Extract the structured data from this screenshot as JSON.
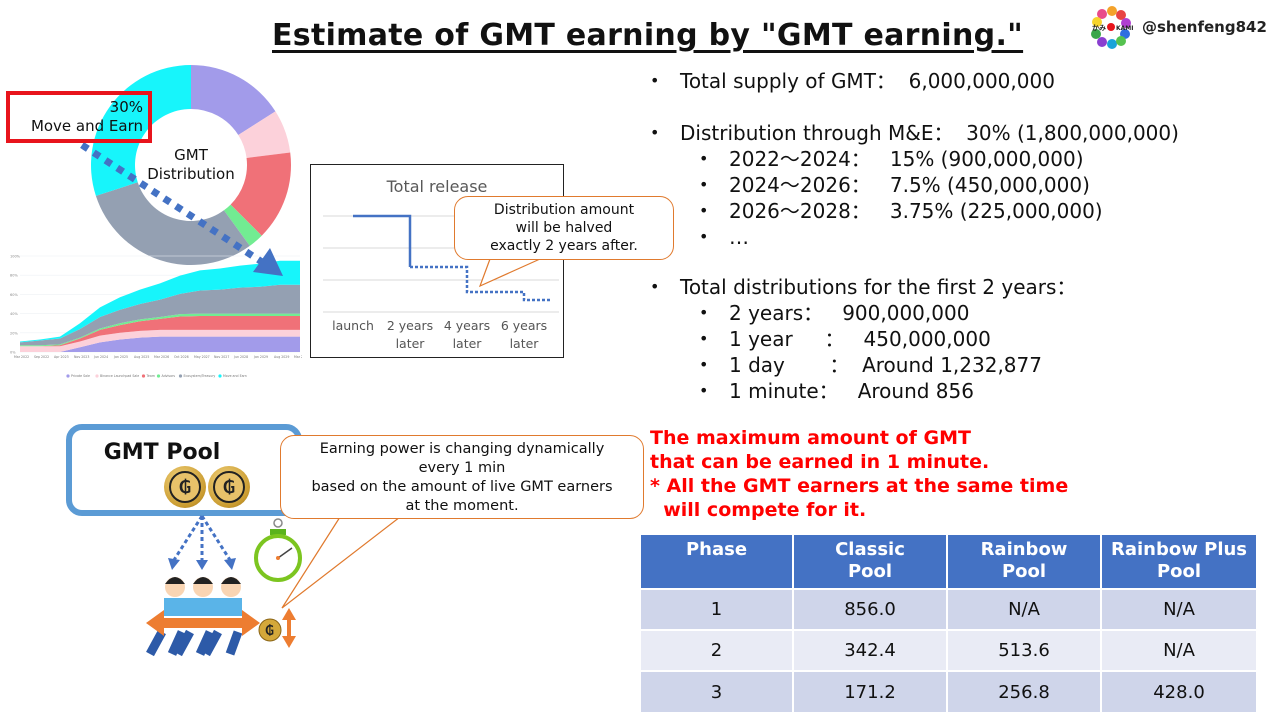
{
  "title": "Estimate of GMT earning by \"GMT earning.\"",
  "author": {
    "handle": "@shenfeng842",
    "logo": "kami-flower-logo"
  },
  "donut": {
    "center_label_line1": "GMT",
    "center_label_line2": "Distribution",
    "highlight_pct": "30%",
    "highlight_label": "Move and Earn",
    "segments": [
      {
        "name": "Private Sale",
        "pct": 16,
        "color": "#a29bea"
      },
      {
        "name": "Binance Launchpad Sale",
        "pct": 7,
        "color": "#fcd1da"
      },
      {
        "name": "Team",
        "pct": 14.5,
        "color": "#f07178"
      },
      {
        "name": "Advisors",
        "pct": 2.5,
        "color": "#72ec92"
      },
      {
        "name": "Ecosystem/Treasury",
        "pct": 30,
        "color": "#94a0b2"
      },
      {
        "name": "Move and Earn",
        "pct": 30,
        "color": "#17f5fb"
      }
    ]
  },
  "chart_data": [
    {
      "type": "pie",
      "title": "GMT Distribution",
      "categories": [
        "Private Sale",
        "Binance Launchpad Sale",
        "Team",
        "Advisors",
        "Ecosystem/Treasury",
        "Move and Earn"
      ],
      "values": [
        16,
        7,
        14.5,
        2.5,
        30,
        30
      ],
      "annotation": "30% Move and Earn"
    },
    {
      "type": "area",
      "title": "",
      "x": [
        "Mar 2022",
        "Sep 2022",
        "Apr 2023",
        "Nov 2023",
        "Jun 2024",
        "Jan 2025",
        "Aug 2025",
        "Mar 2026",
        "Oct 2026",
        "May 2027",
        "Nov 2027",
        "Jun 2028",
        "Jan 2029",
        "Aug 2029",
        "Mar 2030"
      ],
      "yticks": [
        "0%",
        "20%",
        "40%",
        "60%",
        "80%",
        "100%"
      ],
      "ylim": [
        0,
        100
      ],
      "stacked": true,
      "series": [
        {
          "name": "Private Sale",
          "values": [
            0,
            0,
            0,
            5,
            10,
            13,
            15,
            16,
            16,
            16,
            16,
            16,
            16,
            16,
            16
          ]
        },
        {
          "name": "Binance Launchpad Sale",
          "values": [
            6,
            6,
            6,
            6,
            7,
            7,
            7,
            7,
            7,
            7,
            7,
            7,
            7,
            7,
            7
          ]
        },
        {
          "name": "Team",
          "values": [
            0,
            0,
            1,
            3,
            6,
            8,
            10,
            11.5,
            14,
            14.5,
            14.5,
            14.5,
            14.5,
            14.5,
            14.5
          ]
        },
        {
          "name": "Advisors",
          "values": [
            1,
            1,
            1,
            1,
            1.5,
            2,
            2,
            2,
            2.5,
            2.5,
            2.5,
            2.5,
            2.5,
            2.5,
            2.5
          ]
        },
        {
          "name": "Ecosystem/Treasury",
          "values": [
            3,
            5,
            6,
            9,
            12,
            14,
            16,
            18,
            21,
            24,
            25,
            27,
            28,
            30,
            30
          ]
        },
        {
          "name": "Move and Earn",
          "values": [
            1,
            1,
            2,
            6,
            10,
            13,
            15,
            17,
            19,
            21,
            22,
            23,
            24,
            25,
            25
          ]
        }
      ],
      "legend_position": "bottom"
    },
    {
      "type": "line",
      "title": "Total release",
      "categories": [
        "launch",
        "2 years later",
        "4 years later",
        "6 years later"
      ],
      "values": [
        4,
        2,
        1,
        0.5
      ],
      "grid": true,
      "annotation": "Distribution amount will be halved exactly 2 years after."
    }
  ],
  "area_legend": [
    "Private Sale",
    "Binance Launchpad Sale",
    "Team",
    "Advisors",
    "Ecosystem/Treasury",
    "Move and Earn"
  ],
  "release": {
    "title": "Total release",
    "xlabels": [
      {
        "l1": "launch",
        "l2": ""
      },
      {
        "l1": "2 years",
        "l2": "later"
      },
      {
        "l1": "4 years",
        "l2": "later"
      },
      {
        "l1": "6 years",
        "l2": "later"
      }
    ],
    "callout_lines": [
      "Distribution amount",
      "will be halved",
      "exactly 2 years after."
    ]
  },
  "bullets": {
    "total_supply": "Total supply of GMT：  6,000,000,000",
    "distribution": "Distribution through M&E：  30% (1,800,000,000)",
    "periods": [
      "2022～2024：   15% (900,000,000)",
      "2024～2026：   7.5% (450,000,000)",
      "2026～2028：   3.75% (225,000,000)",
      "…"
    ],
    "first2_header": "Total distributions for the first 2 years：",
    "first2": [
      "2 years：   900,000,000",
      "1 year     ：   450,000,000",
      "1 day       ：  Around 1,232,877",
      "1 minute：   Around 856"
    ]
  },
  "red_note": "The maximum amount of GMT\nthat can be earned in 1 minute.\n* All the GMT earners at the same time\n  will compete for it.",
  "pool": {
    "title": "GMT Pool",
    "callout_lines": [
      "Earning power is changing dynamically",
      "every 1 min",
      "based on the amount of live GMT earners",
      "at the moment."
    ]
  },
  "table": {
    "headers": [
      [
        "Phase",
        ""
      ],
      [
        "Classic",
        "Pool"
      ],
      [
        "Rainbow",
        "Pool"
      ],
      [
        "Rainbow Plus",
        "Pool"
      ]
    ],
    "rows": [
      [
        "1",
        "856.0",
        "N/A",
        "N/A"
      ],
      [
        "2",
        "342.4",
        "513.6",
        "N/A"
      ],
      [
        "3",
        "171.2",
        "256.8",
        "428.0"
      ]
    ],
    "header_color": "#4472c4"
  }
}
